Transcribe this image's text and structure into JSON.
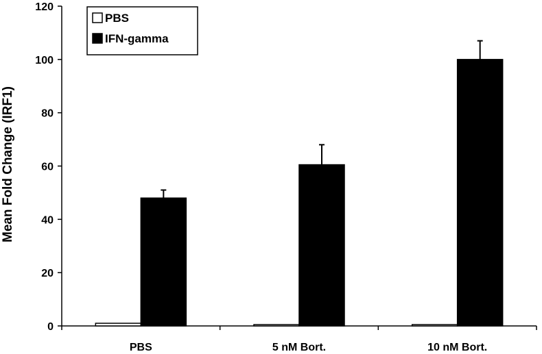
{
  "chart_data": {
    "type": "bar",
    "categories": [
      "PBS",
      "5 nM Bort.",
      "10 nM Bort."
    ],
    "series": [
      {
        "name": "PBS",
        "values": [
          1,
          0.5,
          0.5
        ],
        "errors": [
          0,
          0,
          0
        ],
        "color": "#ffffff"
      },
      {
        "name": "IFN-gamma",
        "values": [
          48,
          60.5,
          100
        ],
        "errors": [
          3,
          7.5,
          7
        ],
        "color": "#000000"
      }
    ],
    "ylabel": "Mean Fold Change (IRF1)",
    "xlabel": "",
    "ylim": [
      0,
      120
    ],
    "yticks": [
      0,
      20,
      40,
      60,
      80,
      100,
      120
    ],
    "grid": false,
    "legend_position": "top-left"
  }
}
